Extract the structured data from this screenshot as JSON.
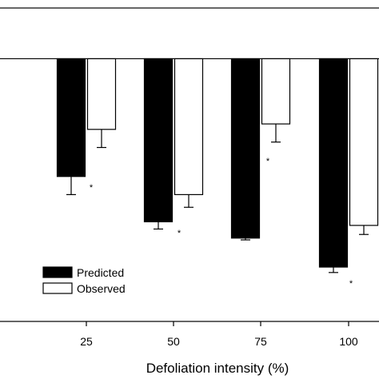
{
  "chart_data": {
    "type": "bar",
    "title": "",
    "xlabel": "Defoliation intensity (%)",
    "ylabel": "",
    "categories": [
      "25",
      "50",
      "75",
      "100"
    ],
    "ylim": [
      -1.45,
      0.28
    ],
    "zero_line": true,
    "grid": false,
    "legend": "bottom-left",
    "series": [
      {
        "name": "Predicted",
        "color": "#000000",
        "values": [
          -0.65,
          -0.9,
          -0.99,
          -1.15
        ],
        "errors": [
          0.1,
          0.04,
          0.01,
          0.03
        ]
      },
      {
        "name": "Observed",
        "color": "#ffffff",
        "values": [
          -0.39,
          -0.75,
          -0.36,
          -0.92
        ],
        "errors": [
          0.1,
          0.07,
          0.1,
          0.05
        ]
      }
    ],
    "annotations": [
      "*",
      "*",
      "*",
      "*"
    ]
  }
}
